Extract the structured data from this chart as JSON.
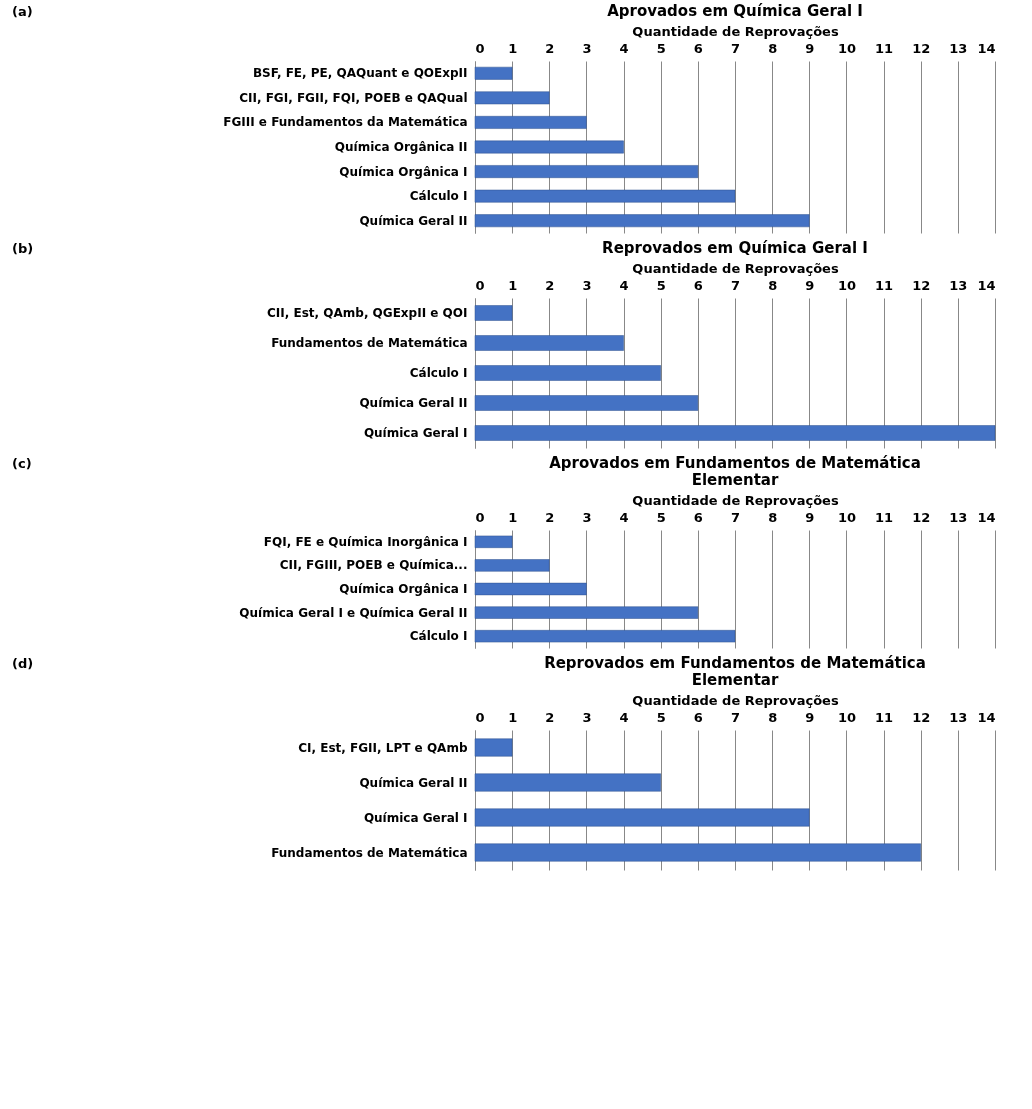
{
  "chart_data": [
    {
      "type": "bar",
      "orientation": "horizontal",
      "title": "Aprovados em Química Geral I",
      "xlabel": "Quantidade de Reprovações",
      "annotations": [
        "(a)"
      ],
      "categories": [
        "BSF, FE, PE, QAQuant e QOExpII",
        "CII, FGI, FGII, FQI, POEB e QAQual",
        "FGIII e Fundamentos da Matemática",
        "Química Orgânica II",
        "Química Orgânica I",
        "Cálculo I",
        "Química Geral II"
      ],
      "values": [
        1,
        2,
        3,
        4,
        6,
        7,
        9
      ],
      "color": "#4472c4",
      "xlim": [
        0,
        14
      ],
      "xticks": [
        0,
        1,
        2,
        3,
        4,
        5,
        6,
        7,
        8,
        9,
        10,
        11,
        12,
        13,
        14
      ],
      "grid": "x"
    },
    {
      "type": "bar",
      "orientation": "horizontal",
      "title": "Reprovados em Química Geral I",
      "xlabel": "Quantidade de Reprovações",
      "annotations": [
        "(b)"
      ],
      "categories": [
        "CII, Est, QAmb, QGExpII e QOI",
        "Fundamentos de Matemática",
        "Cálculo I",
        "Química Geral II",
        "Química Geral I"
      ],
      "values": [
        1,
        4,
        5,
        6,
        14
      ],
      "color": "#4472c4",
      "xlim": [
        0,
        14
      ],
      "xticks": [
        0,
        1,
        2,
        3,
        4,
        5,
        6,
        7,
        8,
        9,
        10,
        11,
        12,
        13,
        14
      ],
      "grid": "x"
    },
    {
      "type": "bar",
      "orientation": "horizontal",
      "title": "Aprovados em Fundamentos de Matemática Elementar",
      "xlabel": "Quantidade de Reprovações",
      "annotations": [
        "(c)"
      ],
      "categories": [
        "FQI, FE e Química Inorgânica I",
        "CII, FGIII, POEB e Química...",
        "Química Orgânica I",
        "Química Geral I e Química Geral II",
        "Cálculo I"
      ],
      "values": [
        1,
        2,
        3,
        6,
        7
      ],
      "color": "#4472c4",
      "xlim": [
        0,
        14
      ],
      "xticks": [
        0,
        1,
        2,
        3,
        4,
        5,
        6,
        7,
        8,
        9,
        10,
        11,
        12,
        13,
        14
      ],
      "grid": "x"
    },
    {
      "type": "bar",
      "orientation": "horizontal",
      "title": "Reprovados em Fundamentos de Matemática Elementar",
      "xlabel": "Quantidade de Reprovações",
      "annotations": [
        "(d)"
      ],
      "categories": [
        "CI, Est, FGII, LPT e QAmb",
        "Química Geral II",
        "Química Geral I",
        "Fundamentos de Matemática"
      ],
      "values": [
        1,
        5,
        9,
        12
      ],
      "color": "#4472c4",
      "xlim": [
        0,
        14
      ],
      "xticks": [
        0,
        1,
        2,
        3,
        4,
        5,
        6,
        7,
        8,
        9,
        10,
        11,
        12,
        13,
        14
      ],
      "grid": "x"
    }
  ]
}
